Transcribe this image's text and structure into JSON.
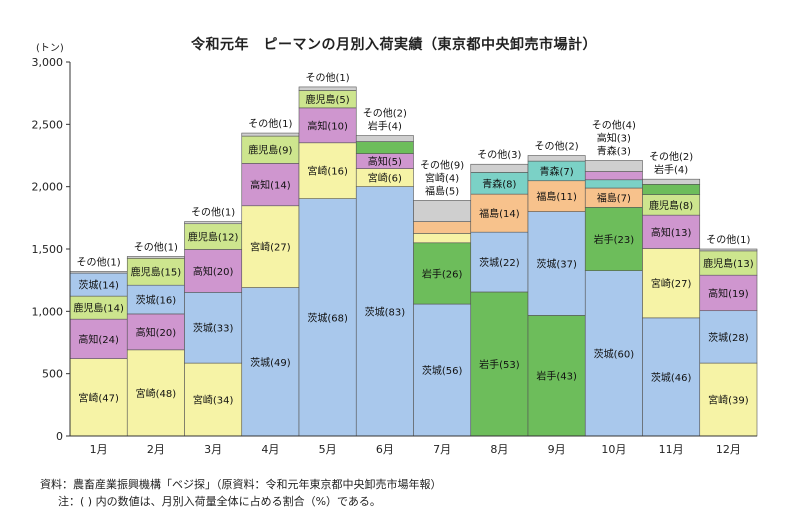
{
  "title": "令和元年　ピーマンの月別入荷実績（東京都中央卸売市場計）",
  "unit": "(トン)",
  "source_note": "資料：農畜産業振興機構「ベジ探」（原資料：令和元年東京都中央卸売市場年報）",
  "footnote": "注：( ) 内の数値は、月別入荷量全体に占める割合（%）である。",
  "chart_data": {
    "type": "bar",
    "stacked": true,
    "ylim": [
      0,
      3000
    ],
    "yticks": [
      "0",
      "500",
      "1,000",
      "1,500",
      "2,000",
      "2,500",
      "3,000"
    ],
    "ytick_values": [
      0,
      500,
      1000,
      1500,
      2000,
      2500,
      3000
    ],
    "categories": [
      "1月",
      "2月",
      "3月",
      "4月",
      "5月",
      "6月",
      "7月",
      "8月",
      "9月",
      "10月",
      "11月",
      "12月"
    ],
    "totals": [
      1320,
      1440,
      1720,
      2430,
      2800,
      2410,
      1890,
      2180,
      2250,
      2210,
      2060,
      1500
    ],
    "colors": {
      "宮崎": "#f6f3a6",
      "茨城": "#a9c8ec",
      "高知": "#cf96cf",
      "鹿児島": "#cde58e",
      "岩手": "#6dbd5b",
      "福島": "#f7c28c",
      "青森": "#7bd1c6",
      "その他": "#cfcfcf",
      "default": "#eeeeee"
    },
    "months": [
      {
        "segments": [
          {
            "name": "宮崎",
            "pct": 47,
            "label": "宮崎(47)",
            "show": true
          },
          {
            "name": "高知",
            "pct": 24,
            "label": "高知(24)",
            "show": true
          },
          {
            "name": "鹿児島",
            "pct": 14,
            "label": "鹿児島(14)",
            "show": true
          },
          {
            "name": "茨城",
            "pct": 14,
            "label": "茨城(14)",
            "show": true
          },
          {
            "name": "その他",
            "pct": 1,
            "label": "その他(1)",
            "show": false
          }
        ],
        "outside": [
          "その他(1)"
        ]
      },
      {
        "segments": [
          {
            "name": "宮崎",
            "pct": 48,
            "label": "宮崎(48)",
            "show": true
          },
          {
            "name": "高知",
            "pct": 20,
            "label": "高知(20)",
            "show": true
          },
          {
            "name": "茨城",
            "pct": 16,
            "label": "茨城(16)",
            "show": true
          },
          {
            "name": "鹿児島",
            "pct": 15,
            "label": "鹿児島(15)",
            "show": true
          },
          {
            "name": "その他",
            "pct": 1,
            "label": "その他(1)",
            "show": false
          }
        ],
        "outside": [
          "その他(1)"
        ]
      },
      {
        "segments": [
          {
            "name": "宮崎",
            "pct": 34,
            "label": "宮崎(34)",
            "show": true
          },
          {
            "name": "茨城",
            "pct": 33,
            "label": "茨城(33)",
            "show": true
          },
          {
            "name": "高知",
            "pct": 20,
            "label": "高知(20)",
            "show": true
          },
          {
            "name": "鹿児島",
            "pct": 12,
            "label": "鹿児島(12)",
            "show": true
          },
          {
            "name": "その他",
            "pct": 1,
            "label": "その他(1)",
            "show": false
          }
        ],
        "outside": [
          "その他(1)"
        ]
      },
      {
        "segments": [
          {
            "name": "茨城",
            "pct": 49,
            "label": "茨城(49)",
            "show": true
          },
          {
            "name": "宮崎",
            "pct": 27,
            "label": "宮崎(27)",
            "show": true
          },
          {
            "name": "高知",
            "pct": 14,
            "label": "高知(14)",
            "show": true
          },
          {
            "name": "鹿児島",
            "pct": 9,
            "label": "鹿児島(9)",
            "show": true
          },
          {
            "name": "その他",
            "pct": 1,
            "label": "その他(1)",
            "show": false
          }
        ],
        "outside": [
          "その他(1)"
        ]
      },
      {
        "segments": [
          {
            "name": "茨城",
            "pct": 68,
            "label": "茨城(68)",
            "show": true
          },
          {
            "name": "宮崎",
            "pct": 16,
            "label": "宮崎(16)",
            "show": true
          },
          {
            "name": "高知",
            "pct": 10,
            "label": "高知(10)",
            "show": true
          },
          {
            "name": "鹿児島",
            "pct": 5,
            "label": "鹿児島(5)",
            "show": true
          },
          {
            "name": "その他",
            "pct": 1,
            "label": "その他(1)",
            "show": false
          }
        ],
        "outside": [
          "その他(1)"
        ]
      },
      {
        "segments": [
          {
            "name": "茨城",
            "pct": 83,
            "label": "茨城(83)",
            "show": true
          },
          {
            "name": "宮崎",
            "pct": 6,
            "label": "宮崎(6)",
            "show": true
          },
          {
            "name": "高知",
            "pct": 5,
            "label": "高知(5)",
            "show": true
          },
          {
            "name": "岩手",
            "pct": 4,
            "label": "岩手(4)",
            "show": false
          },
          {
            "name": "その他",
            "pct": 2,
            "label": "その他(2)",
            "show": false
          }
        ],
        "outside": [
          "その他(2)",
          "岩手(4)"
        ]
      },
      {
        "segments": [
          {
            "name": "茨城",
            "pct": 56,
            "label": "茨城(56)",
            "show": true
          },
          {
            "name": "岩手",
            "pct": 26,
            "label": "岩手(26)",
            "show": true
          },
          {
            "name": "宮崎",
            "pct": 4,
            "label": "宮崎(4)",
            "show": false
          },
          {
            "name": "福島",
            "pct": 5,
            "label": "福島(5)",
            "show": false
          },
          {
            "name": "その他",
            "pct": 9,
            "label": "その他(9)",
            "show": false
          }
        ],
        "outside": [
          "その他(9)",
          "宮崎(4)",
          "福島(5)"
        ]
      },
      {
        "segments": [
          {
            "name": "岩手",
            "pct": 53,
            "label": "岩手(53)",
            "show": true
          },
          {
            "name": "茨城",
            "pct": 22,
            "label": "茨城(22)",
            "show": true
          },
          {
            "name": "福島",
            "pct": 14,
            "label": "福島(14)",
            "show": true
          },
          {
            "name": "青森",
            "pct": 8,
            "label": "青森(8)",
            "show": true
          },
          {
            "name": "その他",
            "pct": 3,
            "label": "その他(3)",
            "show": false
          }
        ],
        "outside": [
          "その他(3)"
        ]
      },
      {
        "segments": [
          {
            "name": "岩手",
            "pct": 43,
            "label": "岩手(43)",
            "show": true
          },
          {
            "name": "茨城",
            "pct": 37,
            "label": "茨城(37)",
            "show": true
          },
          {
            "name": "福島",
            "pct": 11,
            "label": "福島(11)",
            "show": true
          },
          {
            "name": "青森",
            "pct": 7,
            "label": "青森(7)",
            "show": true
          },
          {
            "name": "その他",
            "pct": 2,
            "label": "その他(2)",
            "show": false
          }
        ],
        "outside": [
          "その他(2)"
        ]
      },
      {
        "segments": [
          {
            "name": "茨城",
            "pct": 60,
            "label": "茨城(60)",
            "show": true
          },
          {
            "name": "岩手",
            "pct": 23,
            "label": "岩手(23)",
            "show": true
          },
          {
            "name": "福島",
            "pct": 7,
            "label": "福島(7)",
            "show": true
          },
          {
            "name": "青森",
            "pct": 3,
            "label": "青森(3)",
            "show": false
          },
          {
            "name": "高知",
            "pct": 3,
            "label": "高知(3)",
            "show": false
          },
          {
            "name": "その他",
            "pct": 4,
            "label": "その他(4)",
            "show": false
          }
        ],
        "outside": [
          "その他(4)",
          "高知(3)",
          "青森(3)"
        ]
      },
      {
        "segments": [
          {
            "name": "茨城",
            "pct": 46,
            "label": "茨城(46)",
            "show": true
          },
          {
            "name": "宮崎",
            "pct": 27,
            "label": "宮崎(27)",
            "show": true
          },
          {
            "name": "高知",
            "pct": 13,
            "label": "高知(13)",
            "show": true
          },
          {
            "name": "鹿児島",
            "pct": 8,
            "label": "鹿児島(8)",
            "show": true
          },
          {
            "name": "岩手",
            "pct": 4,
            "label": "岩手(4)",
            "show": false
          },
          {
            "name": "その他",
            "pct": 2,
            "label": "その他(2)",
            "show": false
          }
        ],
        "outside": [
          "その他(2)",
          "岩手(4)"
        ]
      },
      {
        "segments": [
          {
            "name": "宮崎",
            "pct": 39,
            "label": "宮崎(39)",
            "show": true
          },
          {
            "name": "茨城",
            "pct": 28,
            "label": "茨城(28)",
            "show": true
          },
          {
            "name": "高知",
            "pct": 19,
            "label": "高知(19)",
            "show": true
          },
          {
            "name": "鹿児島",
            "pct": 13,
            "label": "鹿児島(13)",
            "show": true
          },
          {
            "name": "その他",
            "pct": 1,
            "label": "その他(1)",
            "show": false
          }
        ],
        "outside": [
          "その他(1)"
        ]
      }
    ]
  }
}
